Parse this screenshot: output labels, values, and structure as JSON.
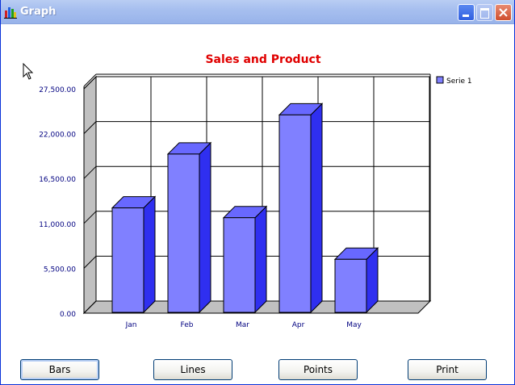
{
  "window": {
    "title": "Graph"
  },
  "titlebar_icons": [
    "chart-app-icon",
    "minimize-icon",
    "maximize-icon",
    "close-icon"
  ],
  "buttons": {
    "bars": "Bars",
    "lines": "Lines",
    "points": "Points",
    "print": "Print"
  },
  "chart_data": {
    "type": "bar",
    "title": "Sales and Product",
    "categories": [
      "Jan",
      "Feb",
      "Mar",
      "Apr",
      "May"
    ],
    "series": [
      {
        "name": "Serie 1",
        "values": [
          12900,
          19500,
          11700,
          24300,
          6600
        ]
      }
    ],
    "ylim": [
      0,
      27500
    ],
    "yticks": [
      0,
      5500,
      11000,
      16500,
      22000,
      27500
    ],
    "ytick_labels": [
      "0.00",
      "5,500.00",
      "11,000.00",
      "16,500.00",
      "22,000.00",
      "27,500.00"
    ],
    "grid": true,
    "legend": "top-right",
    "style": "3d",
    "colors": {
      "title": "#e00000",
      "bar_front": "#8080ff",
      "bar_top": "#6868ff",
      "bar_side": "#2f2ff0",
      "axis_labels": "#000080",
      "wall": "#c0c0c0"
    }
  }
}
